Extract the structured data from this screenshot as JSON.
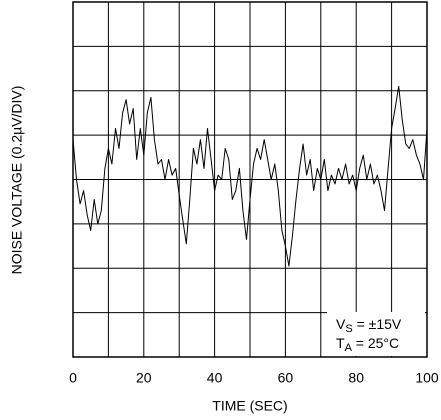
{
  "chart_data": {
    "type": "line",
    "x_label": "TIME (SEC)",
    "y_label": "NOISE VOLTAGE (0.2µV/DIV)",
    "xlim": [
      0,
      100
    ],
    "xticks": [
      0,
      20,
      40,
      60,
      80,
      100
    ],
    "x_minor_ticks": [
      10,
      30,
      50,
      70,
      90
    ],
    "ylim": [
      -0.8,
      0.8
    ],
    "yticks": [
      -0.8,
      -0.6,
      -0.4,
      -0.2,
      0,
      0.2,
      0.4,
      0.6,
      0.8
    ],
    "show_ytick_labels": false,
    "grid": true,
    "annotations": [
      {
        "main": "V",
        "sub": "S",
        "rest": " = ±15V"
      },
      {
        "main": "T",
        "sub": "A",
        "rest": " = 25°C"
      }
    ],
    "series": [
      {
        "color": "#000000",
        "x": [
          0,
          1,
          2,
          3,
          4,
          5,
          6,
          7,
          8,
          9,
          10,
          11,
          12,
          13,
          14,
          15,
          16,
          17,
          18,
          19,
          20,
          21,
          22,
          23,
          24,
          25,
          26,
          27,
          28,
          29,
          30,
          31,
          32,
          33,
          34,
          35,
          36,
          37,
          38,
          39,
          40,
          41,
          42,
          43,
          44,
          45,
          46,
          47,
          48,
          49,
          50,
          51,
          52,
          53,
          54,
          55,
          56,
          57,
          58,
          59,
          60,
          61,
          62,
          63,
          64,
          65,
          66,
          67,
          68,
          69,
          70,
          71,
          72,
          73,
          74,
          75,
          76,
          77,
          78,
          79,
          80,
          81,
          82,
          83,
          84,
          85,
          86,
          87,
          88,
          89,
          90,
          91,
          92,
          93,
          94,
          95,
          96,
          97,
          98,
          99,
          100
        ],
        "values": [
          0.18,
          0,
          -0.11,
          -0.05,
          -0.16,
          -0.23,
          -0.09,
          -0.2,
          -0.14,
          0.05,
          0.14,
          0.07,
          0.23,
          0.14,
          0.3,
          0.36,
          0.25,
          0.32,
          0.09,
          0.23,
          0.11,
          0.3,
          0.37,
          0.18,
          0.07,
          0.09,
          0,
          0.09,
          0.02,
          0.05,
          -0.07,
          -0.18,
          -0.29,
          -0.09,
          0.14,
          0.07,
          0.18,
          0.05,
          0.23,
          0.09,
          -0.05,
          0.02,
          0,
          0.14,
          0.09,
          -0.09,
          -0.05,
          0.05,
          -0.14,
          -0.27,
          -0.09,
          0.07,
          0.14,
          0.09,
          0.18,
          0.09,
          0,
          0.07,
          -0.05,
          -0.23,
          -0.3,
          -0.39,
          -0.25,
          -0.09,
          0.05,
          0.16,
          0.02,
          0.09,
          -0.05,
          0.05,
          0,
          0.09,
          -0.05,
          0.02,
          -0.02,
          0.05,
          0,
          0.07,
          -0.02,
          0.02,
          -0.05,
          0.05,
          0.11,
          0,
          0.07,
          -0.02,
          0.02,
          -0.05,
          -0.14,
          0.05,
          0.23,
          0.32,
          0.42,
          0.27,
          0.16,
          0.14,
          0.18,
          0.11,
          0.07,
          0,
          0.23
        ]
      }
    ]
  }
}
